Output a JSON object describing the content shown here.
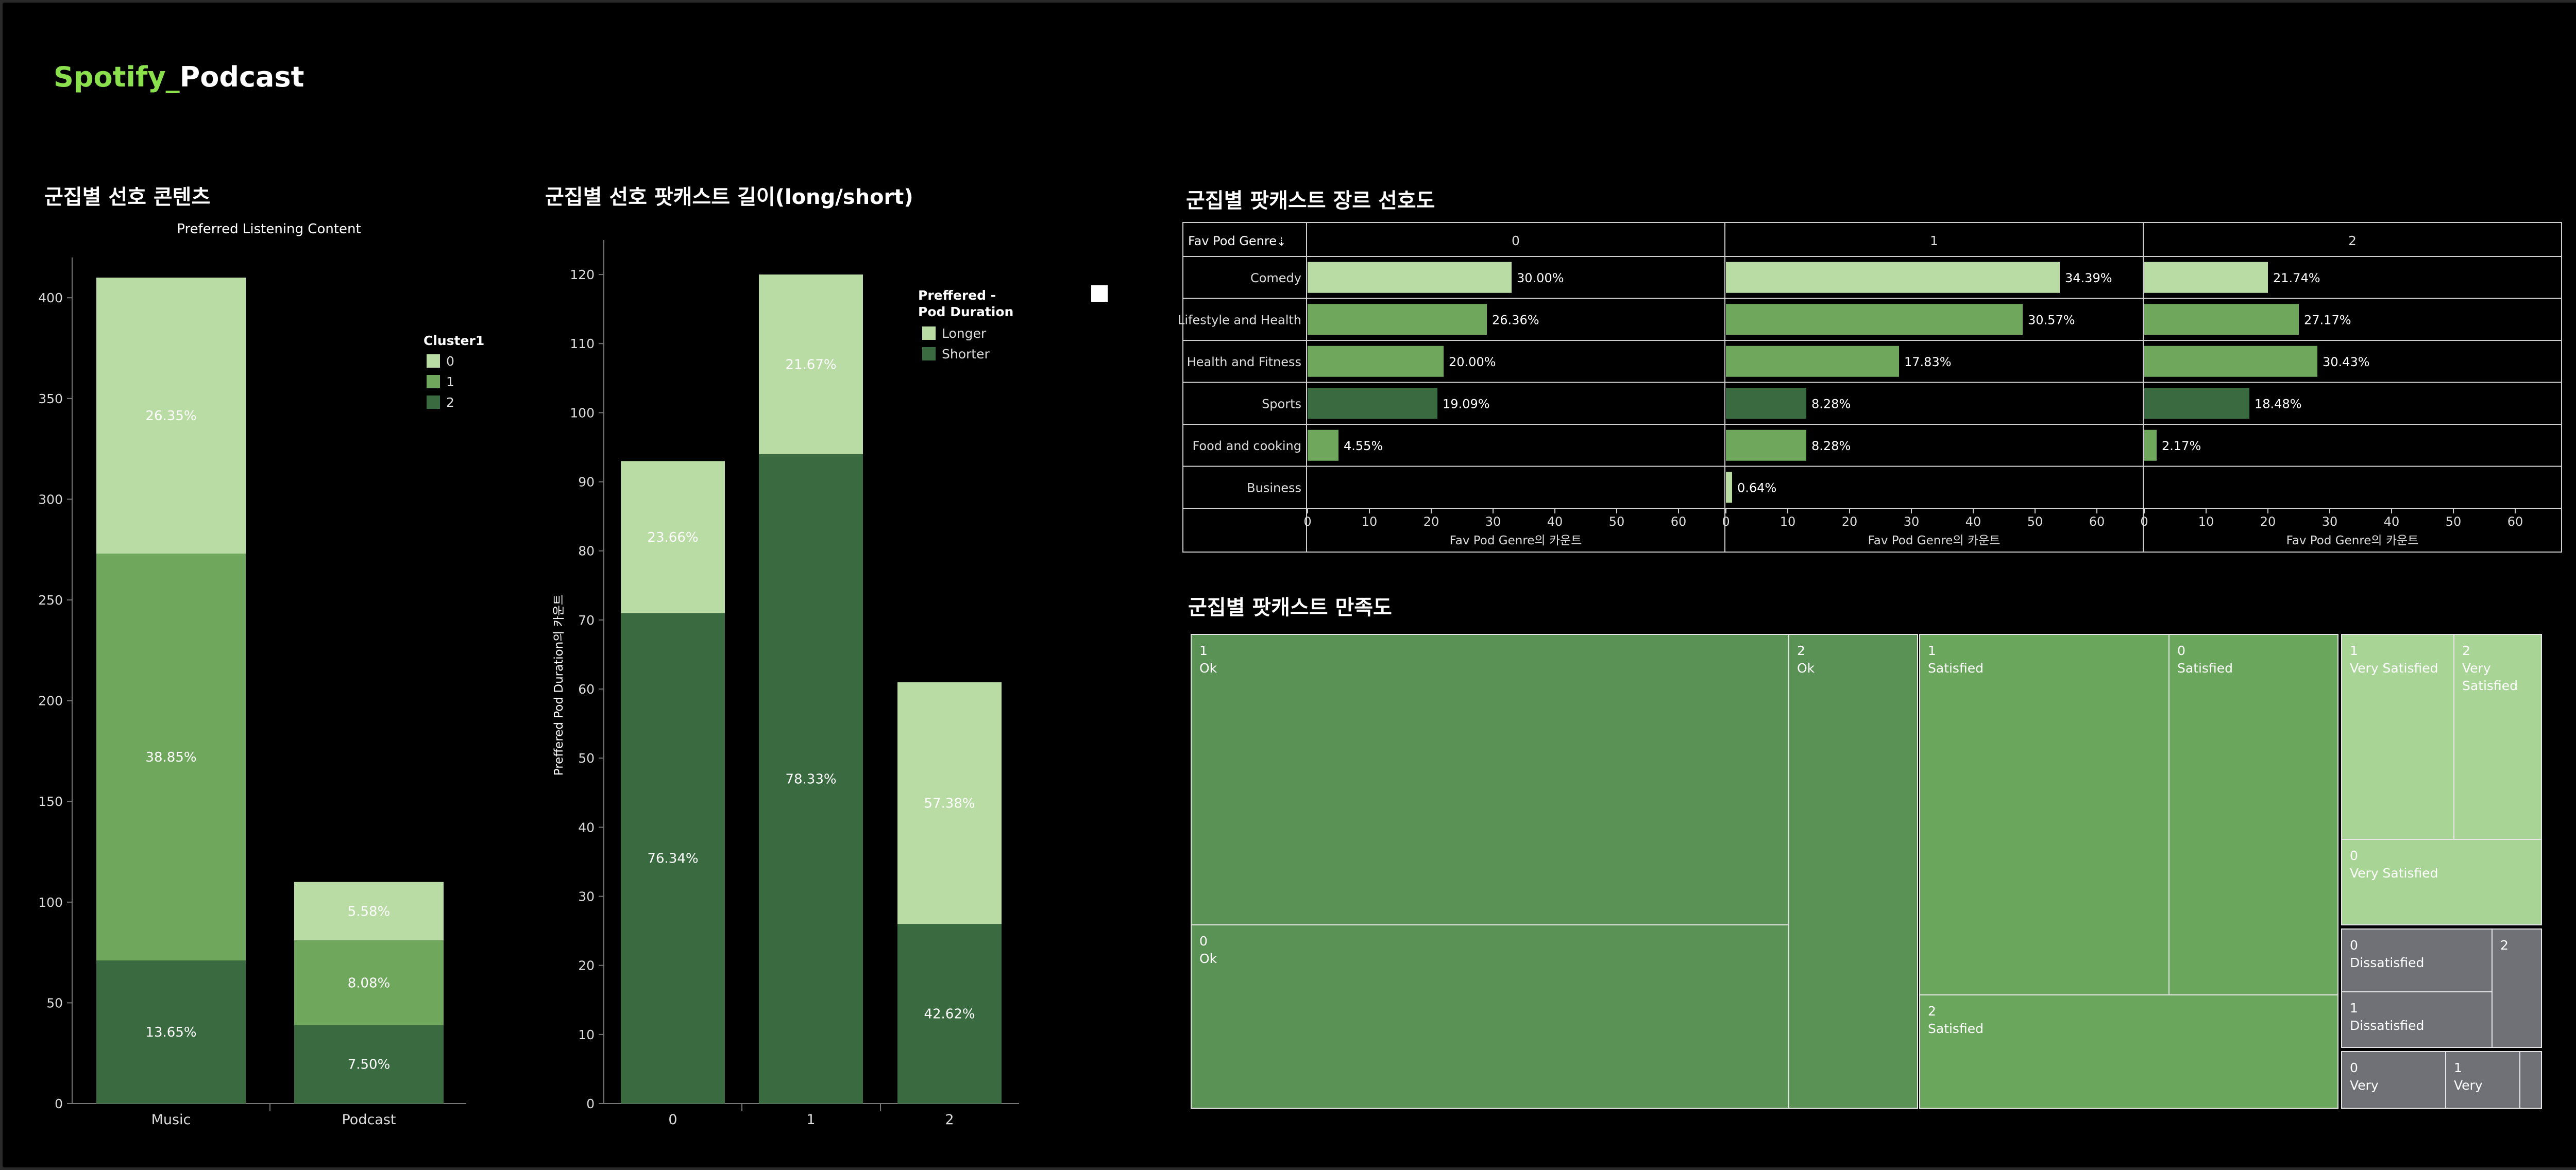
{
  "dashboard": {
    "title_accent": "Spotify_",
    "title_rest": "Podcast"
  },
  "colors": {
    "c0": "#b8dca4",
    "c1": "#6fa85c",
    "c2": "#3a6b40",
    "treemap_green1": "#5a9255",
    "treemap_green2": "#6aa75c",
    "treemap_light": "#a8d595",
    "treemap_gray": "#707176",
    "legend_square": "#ffffff"
  },
  "sections": {
    "s1": "군집별 선호 콘텐츠",
    "s2": "군집별 선호 팟캐스트 길이(long/short)",
    "s3": "군집별 팟캐스트 장르 선호도",
    "s4": "군집별 팟캐스트 만족도"
  },
  "chart_data": [
    {
      "type": "bar",
      "stacked": true,
      "title": "Preferred Listening Content",
      "categories": [
        "Music",
        "Podcast"
      ],
      "legend_title": "Cluster1",
      "series": [
        {
          "name": "2",
          "values": [
            71,
            39
          ],
          "labels": [
            "13.65%",
            "7.50%"
          ]
        },
        {
          "name": "1",
          "values": [
            202,
            42
          ],
          "labels": [
            "38.85%",
            "8.08%"
          ]
        },
        {
          "name": "0",
          "values": [
            137,
            29
          ],
          "labels": [
            "26.35%",
            "5.58%"
          ]
        }
      ],
      "ylim": [
        0,
        420
      ],
      "yticks": [
        0,
        50,
        100,
        150,
        200,
        250,
        300,
        350,
        400
      ],
      "legend_position": "top-right",
      "grid": false
    },
    {
      "type": "bar",
      "stacked": true,
      "categories": [
        "0",
        "1",
        "2"
      ],
      "ylabel": "Preffered Pod Duration의 카운트",
      "legend_title": "Preffered - Pod Duration",
      "series": [
        {
          "name": "Shorter",
          "values": [
            71,
            94,
            26
          ],
          "labels": [
            "76.34%",
            "78.33%",
            "42.62%"
          ]
        },
        {
          "name": "Longer",
          "values": [
            22,
            26,
            35
          ],
          "labels": [
            "23.66%",
            "21.67%",
            "57.38%"
          ]
        }
      ],
      "ylim": [
        0,
        125
      ],
      "yticks": [
        0,
        10,
        20,
        30,
        40,
        50,
        60,
        70,
        80,
        90,
        100,
        110,
        120
      ],
      "legend_position": "top-right",
      "grid": false
    },
    {
      "type": "bar",
      "orientation": "horizontal",
      "row_header": "Fav Pod Genre",
      "categories": [
        "Comedy",
        "Lifestyle and Health",
        "Health and Fitness",
        "Sports",
        "Food and cooking",
        "Business"
      ],
      "panels": [
        {
          "name": "0",
          "values": [
            33,
            29,
            22,
            21,
            5,
            0
          ],
          "labels": [
            "30.00%",
            "26.36%",
            "20.00%",
            "19.09%",
            "4.55%",
            ""
          ],
          "xlabel": "Fav Pod Genre의 카운트"
        },
        {
          "name": "1",
          "values": [
            54,
            48,
            28,
            13,
            13,
            1
          ],
          "labels": [
            "34.39%",
            "30.57%",
            "17.83%",
            "8.28%",
            "8.28%",
            "0.64%"
          ],
          "xlabel": "Fav Pod Genre의 카운트"
        },
        {
          "name": "2",
          "values": [
            20,
            25,
            28,
            17,
            2,
            0
          ],
          "labels": [
            "21.74%",
            "27.17%",
            "30.43%",
            "18.48%",
            "2.17%",
            ""
          ],
          "xlabel": "Fav Pod Genre의 카운트"
        }
      ],
      "xlim": [
        0,
        66
      ],
      "xticks": [
        0,
        10,
        20,
        30,
        40,
        50,
        60
      ],
      "shade": [
        "#b8dca4",
        "#6fa85c",
        "#6fa85c",
        "#3a6b40",
        "#6fa85c",
        "#b8dca4"
      ]
    },
    {
      "type": "treemap",
      "cells": [
        {
          "id": "ok-1",
          "line1": "1",
          "line2": "Ok",
          "fill": "green1"
        },
        {
          "id": "ok-0",
          "line1": "0",
          "line2": "Ok",
          "fill": "green1"
        },
        {
          "id": "ok-2",
          "line1": "2",
          "line2": "Ok",
          "fill": "green1"
        },
        {
          "id": "sat-1",
          "line1": "1",
          "line2": "Satisfied",
          "fill": "green2"
        },
        {
          "id": "sat-0",
          "line1": "0",
          "line2": "Satisfied",
          "fill": "green2"
        },
        {
          "id": "sat-2",
          "line1": "2",
          "line2": "Satisfied",
          "fill": "green2"
        },
        {
          "id": "vs-1",
          "line1": "1",
          "line2": "Very Satisfied",
          "fill": "light"
        },
        {
          "id": "vs-2",
          "line1": "2",
          "line2": "Very",
          "line3": "Satisfied",
          "fill": "light"
        },
        {
          "id": "vs-0",
          "line1": "0",
          "line2": "Very Satisfied",
          "fill": "light"
        },
        {
          "id": "dis-0",
          "line1": "0",
          "line2": "Dissatisfied",
          "fill": "gray"
        },
        {
          "id": "dis-2",
          "line1": "2",
          "line2": "",
          "fill": "gray"
        },
        {
          "id": "dis-1",
          "line1": "1",
          "line2": "Dissatisfied",
          "fill": "gray"
        },
        {
          "id": "vd-0",
          "line1": "0",
          "line2": "Very",
          "fill": "gray"
        },
        {
          "id": "vd-1",
          "line1": "1",
          "line2": "Very",
          "fill": "gray"
        },
        {
          "id": "vd-2",
          "line1": "",
          "line2": "",
          "fill": "gray"
        }
      ]
    }
  ]
}
